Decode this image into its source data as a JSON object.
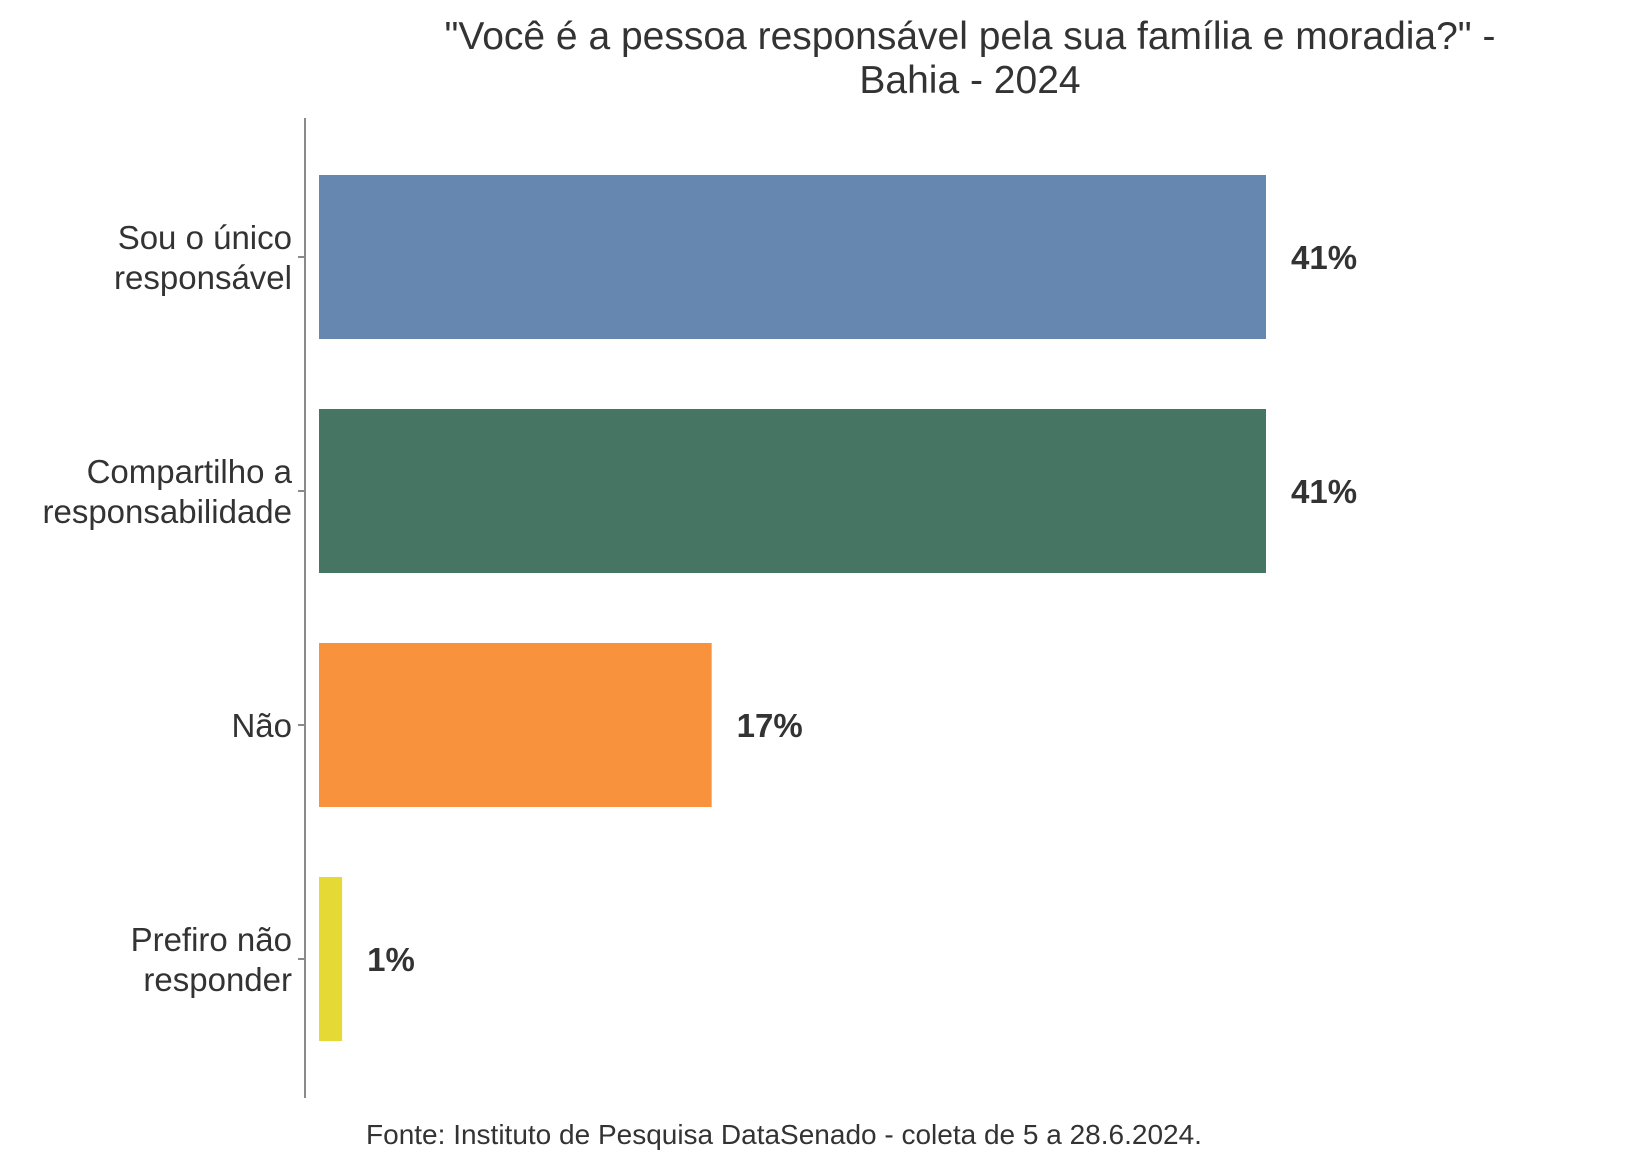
{
  "chart_data": {
    "type": "bar",
    "orientation": "horizontal",
    "title_lines": [
      "\"Você é a pessoa responsável pela sua família e moradia?\" -",
      "Bahia - 2024"
    ],
    "categories": [
      {
        "label_lines": [
          "Sou o único",
          "responsável"
        ],
        "value": 41,
        "value_label": "41%",
        "color": "#6688B0"
      },
      {
        "label_lines": [
          "Compartilho a",
          "responsabilidade"
        ],
        "value": 41,
        "value_label": "41%",
        "color": "#467563"
      },
      {
        "label_lines": [
          "Não"
        ],
        "value": 17,
        "value_label": "17%",
        "color": "#F9923D"
      },
      {
        "label_lines": [
          "Prefiro não",
          "responder"
        ],
        "value": 1,
        "value_label": "1%",
        "color": "#E5D936"
      }
    ],
    "xlim": [
      0,
      41
    ],
    "unit": "%",
    "grid": false,
    "legend": false,
    "source": "Fonte: Instituto de Pesquisa DataSenado - coleta de 5 a 28.6.2024."
  }
}
